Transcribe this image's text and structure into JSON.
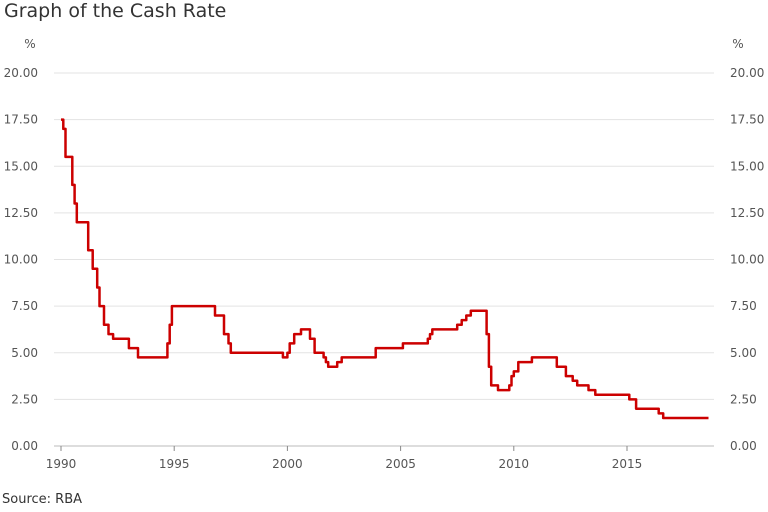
{
  "chart_data": {
    "type": "line",
    "title": "Graph of the Cash Rate",
    "source": "Source: RBA",
    "left_unit": "%",
    "right_unit": "%",
    "y_ticks": [
      "0.00",
      "2.50",
      "5.00",
      "7.50",
      "10.00",
      "12.50",
      "15.00",
      "17.50",
      "20.00"
    ],
    "x_ticks": [
      "1990",
      "1995",
      "2000",
      "2005",
      "2010",
      "2015"
    ],
    "ylim": [
      0,
      20
    ],
    "xlim": [
      1990,
      2018.7
    ],
    "grid": true,
    "line_color": "#cc0000",
    "series": [
      {
        "x": [
          1990.0,
          1990.1,
          1990.2,
          1990.5,
          1990.6,
          1990.7,
          1990.9,
          1991.2,
          1991.4,
          1991.6,
          1991.7,
          1991.9,
          1992.1,
          1992.3,
          1992.5,
          1993.0,
          1993.4,
          1994.6,
          1994.7,
          1994.8,
          1994.9,
          1996.5,
          1996.8,
          1997.2,
          1997.4,
          1997.5,
          1998.9,
          1999.8,
          2000.0,
          2000.1,
          2000.3,
          2000.6,
          2001.0,
          2001.2,
          2001.6,
          2001.7,
          2001.8,
          2002.2,
          2002.4,
          2003.9,
          2004.0,
          2005.1,
          2005.2,
          2006.2,
          2006.3,
          2006.4,
          2006.6,
          2007.5,
          2007.7,
          2007.9,
          2008.1,
          2008.7,
          2008.8,
          2008.9,
          2009.0,
          2009.3,
          2009.8,
          2009.9,
          2010.0,
          2010.2,
          2010.8,
          2011.8,
          2011.9,
          2012.3,
          2012.6,
          2012.8,
          2013.3,
          2013.6,
          2015.1,
          2015.4,
          2016.4,
          2016.6,
          2018.6
        ],
        "y": [
          17.5,
          17.0,
          15.5,
          14.0,
          13.0,
          12.0,
          12.0,
          10.5,
          9.5,
          8.5,
          7.5,
          6.5,
          6.0,
          5.75,
          5.75,
          5.25,
          4.75,
          4.75,
          5.5,
          6.5,
          7.5,
          7.5,
          7.0,
          6.0,
          5.5,
          5.0,
          5.0,
          4.75,
          5.0,
          5.5,
          6.0,
          6.25,
          5.75,
          5.0,
          4.75,
          4.5,
          4.25,
          4.5,
          4.75,
          5.25,
          5.25,
          5.5,
          5.5,
          5.75,
          6.0,
          6.25,
          6.25,
          6.5,
          6.75,
          7.0,
          7.25,
          7.25,
          6.0,
          4.25,
          3.25,
          3.0,
          3.25,
          3.75,
          4.0,
          4.5,
          4.75,
          4.75,
          4.25,
          3.75,
          3.5,
          3.25,
          3.0,
          2.75,
          2.5,
          2.0,
          1.75,
          1.5,
          1.5
        ]
      }
    ]
  }
}
